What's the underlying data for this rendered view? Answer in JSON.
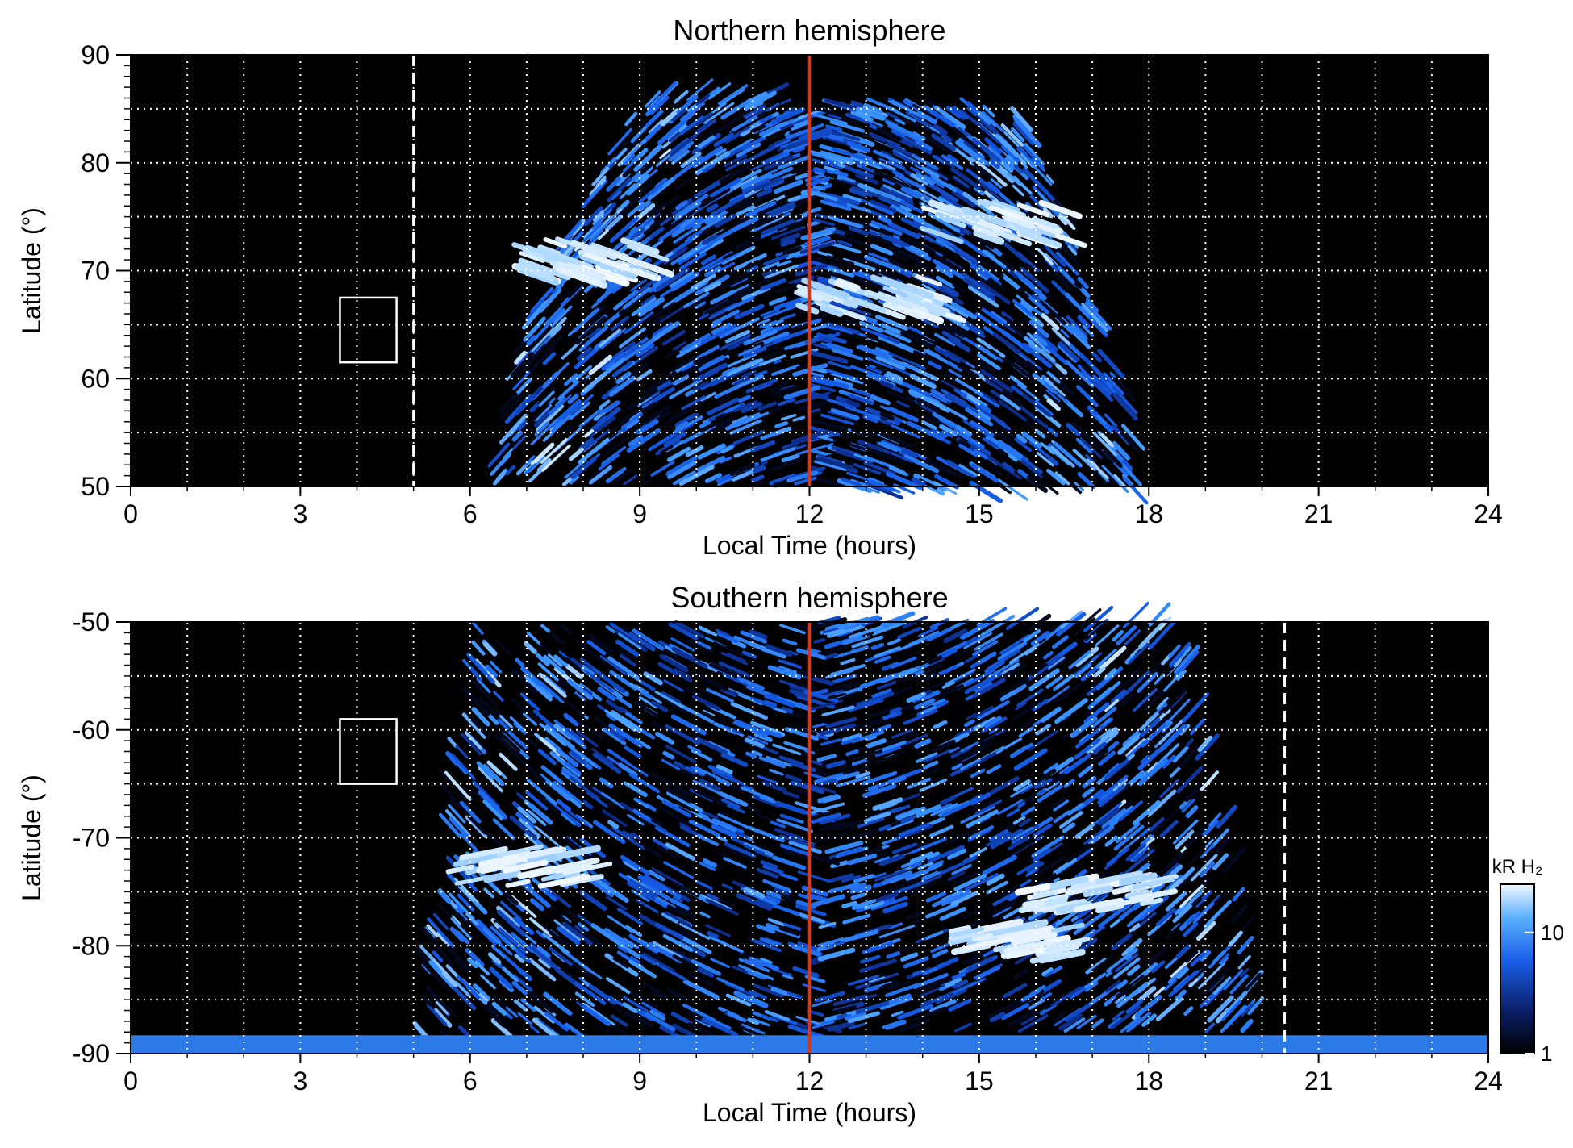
{
  "colors": {
    "background": "#000000",
    "emission_low": "#0a2a8a",
    "emission_mid": "#1e78ff",
    "emission_high": "#e8f4ff",
    "grid": "#ffffff",
    "noon_line": "#d23a1e",
    "dashed_marker": "#ffffff"
  },
  "colorbar": {
    "unit_label": "kR H₂",
    "ticks": [
      "10",
      "1"
    ],
    "tick_values": [
      10,
      1
    ],
    "range": [
      1,
      25
    ],
    "scale": "log"
  },
  "chart_data": [
    {
      "type": "heatmap",
      "title": "Northern hemisphere",
      "xlabel": "Local Time (hours)",
      "ylabel": "Latitude (°)",
      "xlim": [
        0,
        24
      ],
      "ylim": [
        50,
        90
      ],
      "xticks": [
        0,
        3,
        6,
        9,
        12,
        15,
        18,
        21,
        24
      ],
      "xtick_labels": [
        "0",
        "3",
        "6",
        "9",
        "12",
        "15",
        "18",
        "21",
        "24"
      ],
      "yticks": [
        50,
        60,
        70,
        80,
        90
      ],
      "ytick_labels": [
        "50",
        "60",
        "70",
        "80",
        "90"
      ],
      "grid": true,
      "noon_line_x": 12,
      "dashed_marker_x": 5.0,
      "box": {
        "x": [
          3.7,
          4.7
        ],
        "y": [
          61.5,
          67.5
        ]
      },
      "emission_region": {
        "lat_low": 50,
        "lat_high": 86,
        "lt_min_at_low_lat": 6.3,
        "lt_max_at_low_lat": 17.7,
        "lt_min_at_high_lat": 9.0,
        "lt_max_at_high_lat": 15.5
      },
      "bright_spots": [
        {
          "lt": 7.8,
          "lat": 71.5,
          "intensity": 20
        },
        {
          "lt": 15.0,
          "lat": 75.0,
          "intensity": 15
        },
        {
          "lt": 12.9,
          "lat": 68.0,
          "intensity": 12
        }
      ]
    },
    {
      "type": "heatmap",
      "title": "Southern hemisphere",
      "xlabel": "Local Time (hours)",
      "ylabel": "Latitude (°)",
      "xlim": [
        0,
        24
      ],
      "ylim": [
        -90,
        -50
      ],
      "xticks": [
        0,
        3,
        6,
        9,
        12,
        15,
        18,
        21,
        24
      ],
      "xtick_labels": [
        "0",
        "3",
        "6",
        "9",
        "12",
        "15",
        "18",
        "21",
        "24"
      ],
      "yticks": [
        -90,
        -80,
        -70,
        -60,
        -50
      ],
      "ytick_labels": [
        "-90",
        "-80",
        "-70",
        "-60",
        "-50"
      ],
      "grid": true,
      "noon_line_x": 12,
      "dashed_marker_x": 20.4,
      "box": {
        "x": [
          3.7,
          4.7
        ],
        "y": [
          -65,
          -59
        ]
      },
      "emission_region": {
        "lat_low": -88,
        "lat_high": -50,
        "lt_min_at_low_lat": 5.0,
        "lt_max_at_low_lat": 19.8,
        "lt_min_at_high_lat": 6.0,
        "lt_max_at_high_lat": 18.2
      },
      "polar_band": {
        "lat": [
          -90,
          -88.3
        ],
        "lt": [
          0,
          24
        ],
        "intensity": 6
      },
      "bright_spots": [
        {
          "lt": 6.6,
          "lat": -73.0,
          "intensity": 22
        },
        {
          "lt": 16.8,
          "lat": -75.5,
          "intensity": 18
        },
        {
          "lt": 15.5,
          "lat": -80.0,
          "intensity": 14
        }
      ]
    }
  ]
}
